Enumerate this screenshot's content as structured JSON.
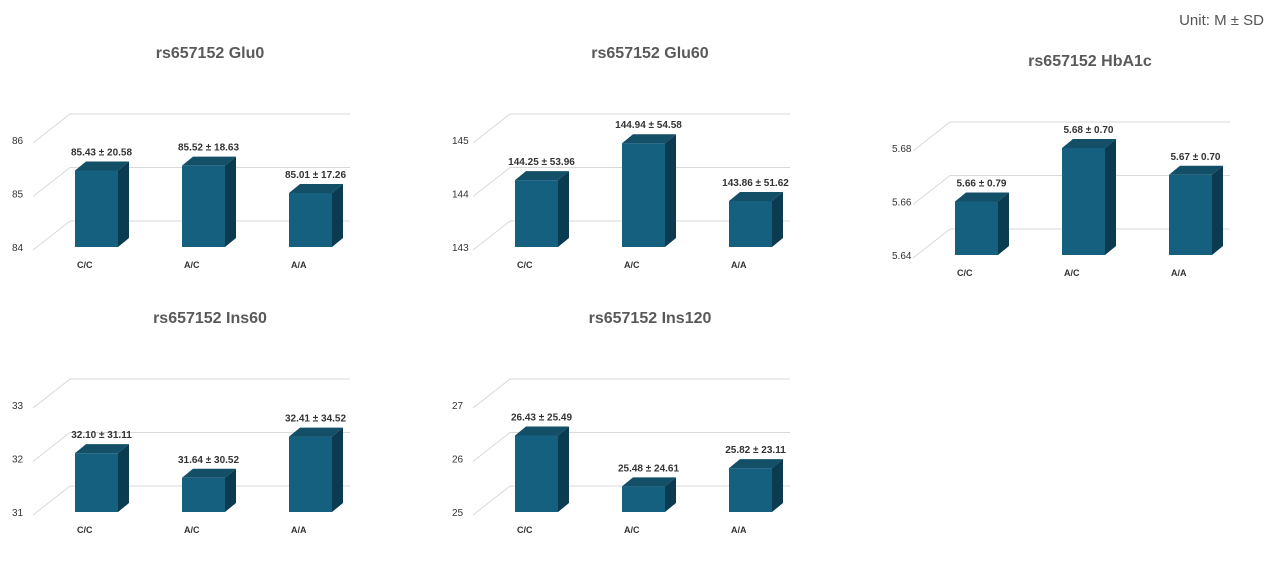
{
  "unit_note": "Unit: M ± SD",
  "colors": {
    "front": "#16607f",
    "side": "#0b3b50",
    "top": "#134f67",
    "grid": "#d9d9d9"
  },
  "chart_data": [
    {
      "type": "bar",
      "title": "rs657152 Glu0",
      "categories": [
        "C/C",
        "A/C",
        "A/A"
      ],
      "values": [
        85.43,
        85.52,
        85.01
      ],
      "data_labels": [
        "85.43 ± 20.58",
        "85.52 ± 18.63",
        "85.01 ± 17.26"
      ],
      "yticks": [
        "86",
        "85",
        "84"
      ],
      "ylim": [
        84,
        86
      ],
      "grid": true
    },
    {
      "type": "bar",
      "title": "rs657152 Glu60",
      "categories": [
        "C/C",
        "A/C",
        "A/A"
      ],
      "values": [
        144.25,
        144.94,
        143.86
      ],
      "data_labels": [
        "144.25 ± 53.96",
        "144.94 ± 54.58",
        "143.86 ± 51.62"
      ],
      "yticks": [
        "145",
        "144",
        "143"
      ],
      "ylim": [
        143,
        145
      ],
      "grid": true
    },
    {
      "type": "bar",
      "title": "rs657152 HbA1c",
      "categories": [
        "C/C",
        "A/C",
        "A/A"
      ],
      "values": [
        5.66,
        5.68,
        5.67
      ],
      "data_labels": [
        "5.66 ± 0.79",
        "5.68 ± 0.70",
        "5.67 ± 0.70"
      ],
      "yticks": [
        "5.68",
        "5.66",
        "5.64"
      ],
      "ylim": [
        5.64,
        5.68
      ],
      "grid": true
    },
    {
      "type": "bar",
      "title": "rs657152 Ins60",
      "categories": [
        "C/C",
        "A/C",
        "A/A"
      ],
      "values": [
        32.1,
        31.64,
        32.41
      ],
      "data_labels": [
        "32.10 ± 31.11",
        "31.64 ± 30.52",
        "32.41 ± 34.52"
      ],
      "yticks": [
        "33",
        "32",
        "31"
      ],
      "ylim": [
        31,
        33
      ],
      "grid": true
    },
    {
      "type": "bar",
      "title": "rs657152 Ins120",
      "categories": [
        "C/C",
        "A/C",
        "A/A"
      ],
      "values": [
        26.43,
        25.48,
        25.82
      ],
      "data_labels": [
        "26.43 ± 25.49",
        "25.48 ± 24.61",
        "25.82 ± 23.11"
      ],
      "yticks": [
        "27",
        "26",
        "25"
      ],
      "ylim": [
        25,
        27
      ],
      "grid": true
    }
  ]
}
